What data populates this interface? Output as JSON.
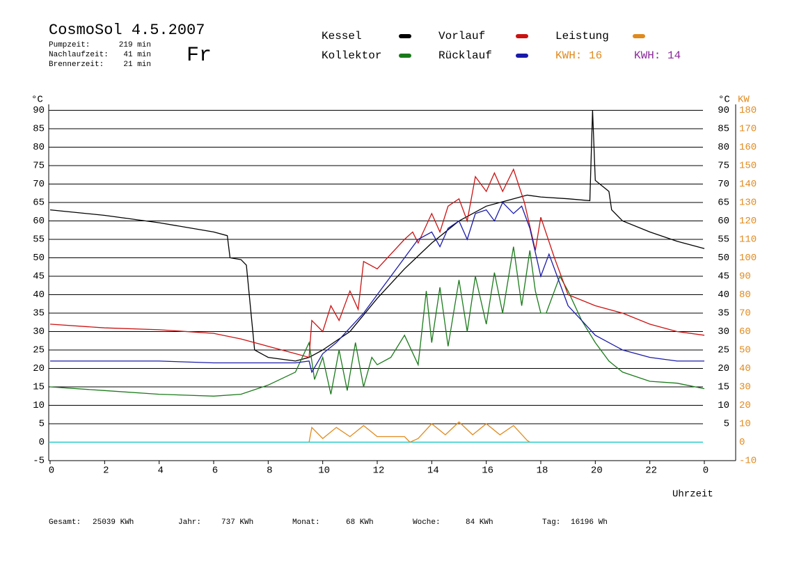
{
  "chart_data": {
    "type": "line",
    "title": "CosmoSol 4.5.2007",
    "day": "Fr",
    "info": [
      {
        "label": "Pumpzeit:",
        "value": "219 min"
      },
      {
        "label": "Nachlaufzeit:",
        "value": "41 min"
      },
      {
        "label": "Brennerzeit:",
        "value": "21 min"
      }
    ],
    "kwh_labels": [
      {
        "text": "KWH: 16",
        "color": "#e08a1e"
      },
      {
        "text": "KWH: 14",
        "color": "#8b2a9a"
      }
    ],
    "y_unit": "°C",
    "y2_unit": "KW",
    "x_label": "Uhrzeit",
    "xlim": [
      0,
      24
    ],
    "xticks": [
      0,
      2,
      4,
      6,
      8,
      10,
      12,
      14,
      16,
      18,
      20,
      22,
      {
        "value": 24,
        "label": "0"
      }
    ],
    "ylim": [
      -5,
      95
    ],
    "yticks": [
      -5,
      0,
      5,
      10,
      15,
      20,
      25,
      30,
      35,
      40,
      45,
      50,
      55,
      60,
      65,
      70,
      75,
      80,
      85,
      90
    ],
    "y2lim": [
      -10,
      190
    ],
    "y2ticks": [
      -10,
      0,
      10,
      20,
      30,
      40,
      50,
      60,
      70,
      80,
      90,
      100,
      110,
      120,
      130,
      140,
      150,
      160,
      170,
      180
    ],
    "grid": true,
    "series": [
      {
        "name": "Kessel",
        "color": "#000000",
        "x": [
          0,
          2,
          4,
          6,
          6.5,
          6.6,
          7,
          7.2,
          7.5,
          8,
          9,
          9.5,
          10,
          11,
          12,
          13,
          14,
          15,
          16,
          17,
          17.5,
          18,
          19,
          19.8,
          19.9,
          20,
          20.5,
          20.6,
          21,
          22,
          23,
          24
        ],
        "values": [
          63,
          61.5,
          59.5,
          57,
          56,
          50,
          49.5,
          48,
          25,
          23,
          22,
          23,
          25,
          30,
          39,
          47,
          54,
          60,
          64,
          66,
          67,
          66.5,
          66,
          65.5,
          90,
          71,
          68,
          63,
          60,
          57,
          54.5,
          52.5
        ]
      },
      {
        "name": "Kollektor",
        "color": "#1a7a1a",
        "x": [
          0,
          2,
          4,
          6,
          7,
          8,
          9,
          9.5,
          9.7,
          10,
          10.3,
          10.6,
          10.9,
          11.2,
          11.5,
          11.8,
          12,
          12.5,
          13,
          13.5,
          13.8,
          14,
          14.3,
          14.6,
          15,
          15.3,
          15.6,
          16,
          16.3,
          16.6,
          17,
          17.3,
          17.6,
          17.8,
          18,
          18.2,
          18.7,
          19,
          19.5,
          20,
          20.5,
          21,
          22,
          23,
          24
        ],
        "values": [
          15,
          14,
          13,
          12.5,
          13,
          15.5,
          19,
          27,
          17,
          23,
          13,
          25,
          14,
          27,
          15,
          23,
          21,
          23,
          29,
          21,
          41,
          27,
          42,
          26,
          44,
          30,
          45,
          32,
          46,
          35,
          53,
          37,
          52,
          41,
          35,
          35,
          45,
          41,
          33,
          27,
          22,
          19,
          16.5,
          16,
          14.5
        ]
      },
      {
        "name": "Vorlauf",
        "color": "#cc1111",
        "x": [
          0,
          2,
          4,
          6,
          7,
          8,
          9,
          9.5,
          9.6,
          10,
          10.3,
          10.6,
          11,
          11.3,
          11.5,
          12,
          12.5,
          13,
          13.3,
          13.5,
          14,
          14.3,
          14.6,
          15,
          15.3,
          15.6,
          16,
          16.3,
          16.6,
          17,
          17.4,
          17.8,
          18,
          18.5,
          19,
          20,
          21,
          22,
          23,
          24
        ],
        "values": [
          32,
          31,
          30.5,
          29.5,
          28,
          26,
          24,
          23,
          33,
          30,
          37,
          33,
          41,
          36,
          49,
          47,
          51,
          55,
          57,
          54,
          62,
          57,
          64,
          66,
          60,
          72,
          68,
          73,
          68,
          74,
          65,
          52,
          61,
          50,
          40,
          37,
          35,
          32,
          30,
          29
        ]
      },
      {
        "name": "Rücklauf",
        "color": "#1a1aaa",
        "x": [
          0,
          2,
          4,
          6,
          8,
          9,
          9.5,
          9.6,
          10,
          10.5,
          11,
          11.5,
          12,
          12.5,
          13,
          13.2,
          13.5,
          14,
          14.3,
          14.6,
          15,
          15.3,
          15.6,
          16,
          16.3,
          16.6,
          17,
          17.3,
          17.6,
          18,
          18.3,
          19,
          19.5,
          20,
          21,
          22,
          23,
          24
        ],
        "values": [
          22,
          22,
          22,
          21.5,
          21.5,
          21.5,
          22,
          19,
          24,
          27,
          31,
          35,
          40,
          45,
          50,
          52,
          55,
          57,
          53,
          58,
          60,
          55,
          62,
          63,
          60,
          65,
          62,
          64,
          58,
          45,
          51,
          37,
          33,
          29,
          25,
          23,
          22,
          22
        ]
      },
      {
        "name": "Leistung",
        "color": "#e08a1e",
        "axis": "y2",
        "x": [
          9.5,
          9.6,
          10,
          10.5,
          11,
          11.5,
          12,
          13,
          13.2,
          13.5,
          14,
          14.5,
          15,
          15.5,
          16,
          16.5,
          17,
          17.5,
          17.6
        ],
        "values": [
          0,
          8,
          2,
          8,
          3,
          9,
          3,
          3,
          0,
          2,
          10,
          4,
          11,
          4,
          10,
          4,
          9,
          1,
          0
        ]
      }
    ],
    "totals": [
      {
        "label": "Gesamt:",
        "value": "25039 KWh"
      },
      {
        "label": "Jahr:",
        "value": "737 KWh"
      },
      {
        "label": "Monat:",
        "value": "68 KWh"
      },
      {
        "label": "Woche:",
        "value": "84 KWh"
      },
      {
        "label": "Tag:",
        "value": "16196 Wh"
      }
    ]
  }
}
